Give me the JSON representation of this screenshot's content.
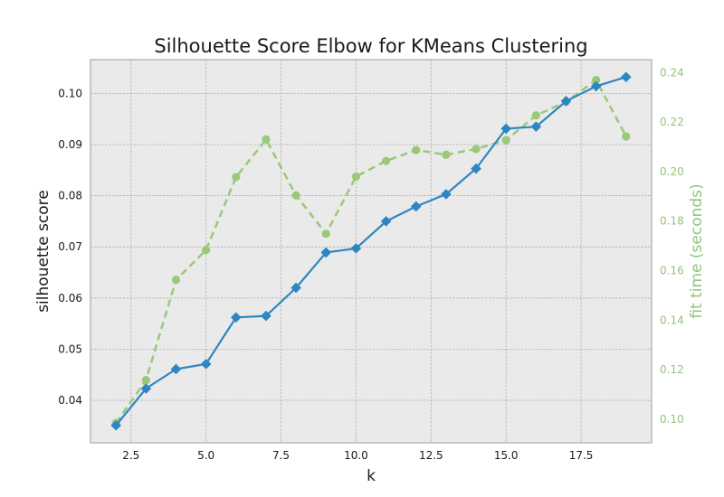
{
  "chart_data": {
    "type": "line",
    "title": "Silhouette Score Elbow for KMeans Clustering",
    "xlabel": "k",
    "ylabel": "silhouette score",
    "y2label": "fit time (seconds)",
    "xlim": [
      1.15,
      19.85
    ],
    "ylim": [
      0.0317,
      0.1066
    ],
    "y2lim": [
      0.0905,
      0.2452
    ],
    "x_ticks": [
      2.5,
      5.0,
      7.5,
      10.0,
      12.5,
      15.0,
      17.5
    ],
    "x_tick_labels": [
      "2.5",
      "5.0",
      "7.5",
      "10.0",
      "12.5",
      "15.0",
      "17.5"
    ],
    "y_ticks": [
      0.04,
      0.05,
      0.06,
      0.07,
      0.08,
      0.09,
      0.1
    ],
    "y_tick_labels": [
      "0.04",
      "0.05",
      "0.06",
      "0.07",
      "0.08",
      "0.09",
      "0.10"
    ],
    "y2_ticks": [
      0.1,
      0.12,
      0.14,
      0.16,
      0.18,
      0.2,
      0.22,
      0.24
    ],
    "y2_tick_labels": [
      "0.10",
      "0.12",
      "0.14",
      "0.16",
      "0.18",
      "0.20",
      "0.22",
      "0.24"
    ],
    "grid": true,
    "x": [
      2,
      3,
      4,
      5,
      6,
      7,
      8,
      9,
      10,
      11,
      12,
      13,
      14,
      15,
      16,
      17,
      18,
      19
    ],
    "series": [
      {
        "axis": "left",
        "style": "solid",
        "marker": "diamond",
        "color": "#2e86c1",
        "values": [
          0.0351,
          0.0423,
          0.0461,
          0.0471,
          0.0562,
          0.0565,
          0.062,
          0.0689,
          0.0697,
          0.075,
          0.0779,
          0.0803,
          0.0853,
          0.0931,
          0.0935,
          0.0985,
          0.1014,
          0.1032
        ]
      },
      {
        "axis": "right",
        "style": "dashed",
        "marker": "circle",
        "color": "#9ac87a",
        "values": [
          0.0985,
          0.1158,
          0.1563,
          0.1683,
          0.1978,
          0.213,
          0.1904,
          0.1749,
          0.198,
          0.2043,
          0.2087,
          0.2068,
          0.2091,
          0.2127,
          0.2227,
          0.2282,
          0.237,
          0.2142
        ]
      }
    ],
    "colors": {
      "plot_bg": "#eaeaea",
      "frame": "#b5b5b5",
      "grid": "#b0b0b0",
      "text": "#1a1a1a",
      "secondary_text": "#92c47a"
    }
  }
}
